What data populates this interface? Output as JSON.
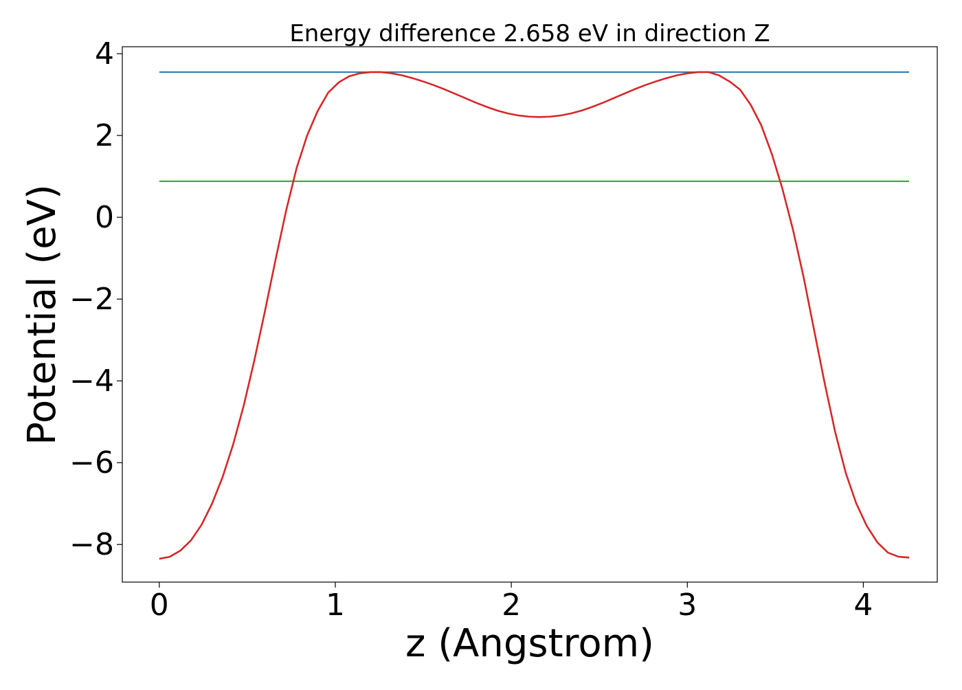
{
  "chart_data": {
    "type": "line",
    "title": "Energy difference 2.658 eV in direction Z",
    "xlabel": "z (Angstrom)",
    "ylabel": "Potential (eV)",
    "xlim": [
      -0.21,
      4.42
    ],
    "ylim": [
      -8.92,
      4.17
    ],
    "xticks": [
      0,
      1,
      2,
      3,
      4
    ],
    "yticks": [
      -8,
      -6,
      -4,
      -2,
      0,
      2,
      4
    ],
    "xtick_labels": [
      "0",
      "1",
      "2",
      "3",
      "4"
    ],
    "ytick_labels": [
      "−8",
      "−6",
      "−4",
      "−2",
      "0",
      "2",
      "4"
    ],
    "grid": false,
    "legend": "none",
    "series": [
      {
        "color": "#d62728",
        "x": [
          0.0,
          0.06,
          0.12,
          0.18,
          0.24,
          0.3,
          0.36,
          0.42,
          0.48,
          0.54,
          0.6,
          0.66,
          0.72,
          0.78,
          0.84,
          0.9,
          0.96,
          1.02,
          1.08,
          1.14,
          1.2,
          1.26,
          1.32,
          1.38,
          1.44,
          1.5,
          1.56,
          1.62,
          1.68,
          1.74,
          1.8,
          1.86,
          1.92,
          1.98,
          2.04,
          2.1,
          2.16,
          2.22,
          2.28,
          2.34,
          2.4,
          2.46,
          2.52,
          2.58,
          2.64,
          2.7,
          2.76,
          2.82,
          2.88,
          2.94,
          3.0,
          3.06,
          3.12,
          3.18,
          3.24,
          3.3,
          3.36,
          3.42,
          3.48,
          3.54,
          3.6,
          3.66,
          3.72,
          3.78,
          3.84,
          3.9,
          3.96,
          4.02,
          4.08,
          4.14,
          4.2,
          4.26
        ],
        "y": [
          -8.35,
          -8.3,
          -8.15,
          -7.9,
          -7.52,
          -7.0,
          -6.35,
          -5.55,
          -4.6,
          -3.5,
          -2.3,
          -1.05,
          0.15,
          1.2,
          2.0,
          2.6,
          3.05,
          3.3,
          3.45,
          3.52,
          3.55,
          3.55,
          3.52,
          3.47,
          3.4,
          3.32,
          3.23,
          3.13,
          3.02,
          2.91,
          2.8,
          2.7,
          2.61,
          2.54,
          2.49,
          2.46,
          2.45,
          2.46,
          2.49,
          2.54,
          2.61,
          2.7,
          2.8,
          2.91,
          3.02,
          3.13,
          3.23,
          3.32,
          3.4,
          3.47,
          3.52,
          3.55,
          3.55,
          3.47,
          3.32,
          3.12,
          2.75,
          2.25,
          1.55,
          0.7,
          -0.3,
          -1.45,
          -2.75,
          -4.05,
          -5.25,
          -6.25,
          -7.0,
          -7.55,
          -7.95,
          -8.2,
          -8.3,
          -8.32
        ]
      },
      {
        "color": "#1f77b4",
        "x": [
          0.0,
          4.26
        ],
        "y": [
          3.55,
          3.55
        ]
      },
      {
        "color": "#2ca02c",
        "x": [
          0.0,
          4.26
        ],
        "y": [
          0.88,
          0.88
        ]
      }
    ]
  }
}
